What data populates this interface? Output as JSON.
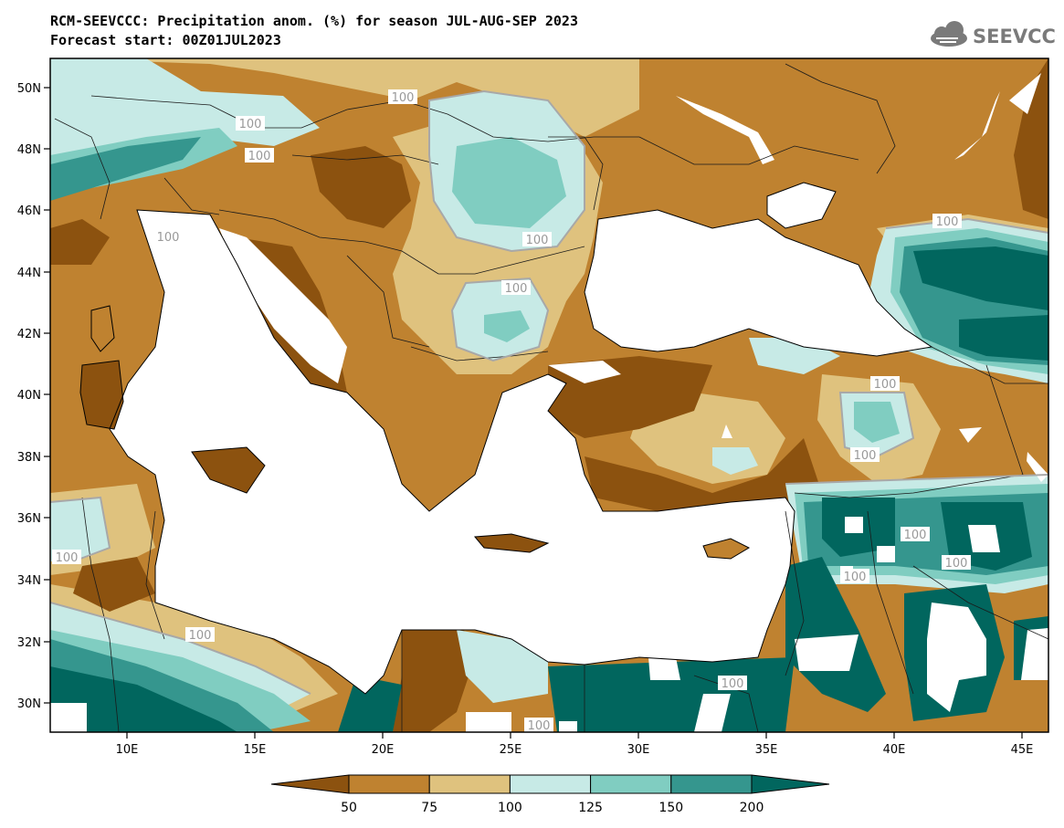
{
  "header": {
    "title_line1": "RCM-SEEVCCC: Precipitation anom. (%) for season JUL-AUG-SEP 2023",
    "title_line2": "Forecast start: 00Z01JUL2023"
  },
  "logo": {
    "text": "SEEVCCC",
    "icon": "cloud-icon"
  },
  "map_data": {
    "lat_labels": [
      "30N",
      "32N",
      "34N",
      "36N",
      "38N",
      "40N",
      "42N",
      "44N",
      "46N",
      "48N",
      "50N"
    ],
    "lon_labels": [
      "10E",
      "15E",
      "20E",
      "25E",
      "30E",
      "35E",
      "40E",
      "45E"
    ],
    "contour_label": "100",
    "palette": {
      "lt50": "#8c520f",
      "50_75": "#bf8230",
      "75_100": "#dfc27e",
      "100_125": "#c7eae6",
      "125_150": "#80cdc1",
      "150_200": "#35968e",
      "gt200": "#01665e",
      "contour": "#a8a8a8",
      "sea": "#ffffff"
    }
  },
  "colorbar": {
    "tick_labels": [
      "50",
      "75",
      "100",
      "125",
      "150",
      "200"
    ],
    "colors": [
      "#8c520f",
      "#bf8230",
      "#dfc27e",
      "#c7eae6",
      "#80cdc1",
      "#35968e",
      "#01665e"
    ]
  }
}
